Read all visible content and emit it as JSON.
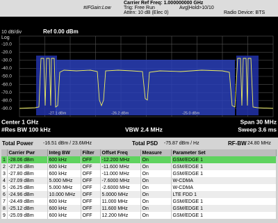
{
  "header": {
    "carrier_ref_freq": "Carrier Ref Freq: 1.000000000 GHz",
    "trig": "Trig: Free Run",
    "avg_hold": "Avg|Hold>10/10",
    "if_gain": "#IFGain:Low",
    "atten": "Atten: 10 dB (Elec 0)",
    "radio_device": "Radio Device: BTS"
  },
  "plot": {
    "scale": "10 dB/div",
    "ref": "Ref 0.00 dBm",
    "log": "Log",
    "y_labels": [
      "-10.0",
      "-20.0",
      "-30.0",
      "-40.0",
      "-50.0",
      "-60.0",
      "-70.0",
      "-80.0",
      "-90.0"
    ],
    "band_labels": [
      "-27.1 dBm",
      "-26.2 dBm",
      "-25.0 dBm"
    ],
    "center": "Center 1 GHz",
    "res_bw": "#Res BW 100 kHz",
    "vbw": "VBW 2.4 MHz",
    "span": "Span 30 MHz",
    "sweep": "Sweep 3.6 ms"
  },
  "summary": {
    "total_power_label": "Total Power",
    "total_power": "-16.51 dBm / 23.6MHz",
    "total_psd_label": "Total PSD",
    "total_psd": "-75.87 dBm / Hz",
    "rf_bw_label": "RF-BW",
    "rf_bw": "24.80 MHz"
  },
  "table": {
    "columns": [
      "Carrier Pwr",
      "Integ BW",
      "Filter",
      "Offset Freq",
      "Measure",
      "Parameter Set"
    ],
    "rows": [
      [
        "1",
        "-28.06 dBm",
        "600 kHz",
        "OFF",
        "-12.200 MHz",
        "On",
        "GSM/EDGE 1"
      ],
      [
        "2",
        "-27.26 dBm",
        "600 kHz",
        "OFF",
        "-11.600 MHz",
        "On",
        "GSM/EDGE 1"
      ],
      [
        "3",
        "-27.80 dBm",
        "600 kHz",
        "OFF",
        "-11.000 MHz",
        "On",
        "GSM/EDGE 1"
      ],
      [
        "4",
        "-27.09 dBm",
        "5.000 MHz",
        "OFF",
        "-7.6000 MHz",
        "On",
        "W-CDMA"
      ],
      [
        "5",
        "-26.25 dBm",
        "5.000 MHz",
        "OFF",
        "-2.6000 MHz",
        "On",
        "W-CDMA"
      ],
      [
        "6",
        "-24.96 dBm",
        "10.000 MHz",
        "OFF",
        "5.0000 MHz",
        "On",
        "LTE FDD 1"
      ],
      [
        "7",
        "-24.49 dBm",
        "600 kHz",
        "OFF",
        "11.000 MHz",
        "On",
        "GSM/EDGE 1"
      ],
      [
        "8",
        "-25.12 dBm",
        "600 kHz",
        "OFF",
        "11.600 MHz",
        "On",
        "GSM/EDGE 1"
      ],
      [
        "9",
        "-25.09 dBm",
        "600 kHz",
        "OFF",
        "12.200 MHz",
        "On",
        "GSM/EDGE 1"
      ]
    ]
  }
}
